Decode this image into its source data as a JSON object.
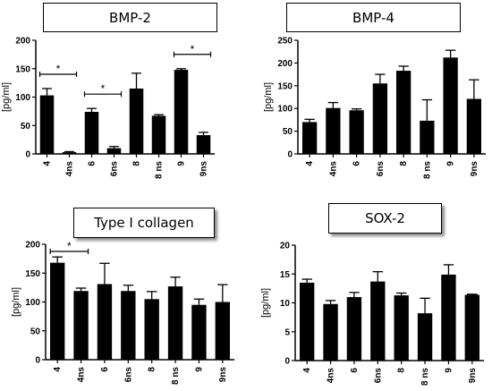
{
  "chart_data": [
    {
      "type": "bar",
      "title": "BMP-2",
      "ylabel": "[pg/ml]",
      "ylim": [
        0,
        200
      ],
      "yticks": [
        0,
        50,
        100,
        150,
        200
      ],
      "categories": [
        "4",
        "4ns",
        "6",
        "6ns",
        "8",
        "8 ns",
        "9",
        "9ns"
      ],
      "values": [
        103,
        3,
        74,
        10,
        115,
        67,
        148,
        33
      ],
      "errors": [
        12,
        1,
        6,
        3,
        27,
        2,
        2,
        5
      ],
      "significance": [
        {
          "from": 0,
          "to": 1,
          "label": "*"
        },
        {
          "from": 2,
          "to": 3,
          "label": "*"
        },
        {
          "from": 6,
          "to": 7,
          "label": "*"
        }
      ]
    },
    {
      "type": "bar",
      "title": "BMP-4",
      "ylabel": "[pg/ml]",
      "ylim": [
        0,
        250
      ],
      "yticks": [
        0,
        50,
        100,
        150,
        200,
        250
      ],
      "categories": [
        "4",
        "4ns",
        "6",
        "6ns",
        "8",
        "8 ns",
        "9",
        "9ns"
      ],
      "values": [
        70,
        101,
        96,
        155,
        183,
        73,
        212,
        121
      ],
      "errors": [
        6,
        12,
        3,
        20,
        10,
        46,
        16,
        42
      ],
      "significance": []
    },
    {
      "type": "bar",
      "title": "Type I collagen",
      "ylabel": "[pg/ml]",
      "ylim": [
        0,
        200
      ],
      "yticks": [
        0,
        50,
        100,
        150,
        200
      ],
      "categories": [
        "4",
        "4ns",
        "6",
        "6ns",
        "8",
        "8 ns",
        "9",
        "9ns"
      ],
      "values": [
        168,
        119,
        131,
        119,
        105,
        127,
        95,
        100
      ],
      "errors": [
        10,
        5,
        36,
        10,
        13,
        16,
        10,
        30
      ],
      "significance": [
        {
          "from": 0,
          "to": 1,
          "label": "*"
        }
      ]
    },
    {
      "type": "bar",
      "title": "SOX-2",
      "ylabel": "[pg/ml]",
      "ylim": [
        0,
        20
      ],
      "yticks": [
        0,
        5,
        10,
        15,
        20
      ],
      "categories": [
        "4",
        "4ns",
        "6",
        "6ns",
        "8",
        "8 ns",
        "9",
        "9ns"
      ],
      "values": [
        13.5,
        9.8,
        11.0,
        13.7,
        11.3,
        8.2,
        14.9,
        11.4
      ],
      "errors": [
        0.6,
        0.6,
        0.8,
        1.7,
        0.4,
        2.6,
        1.7,
        0.1
      ],
      "significance": []
    }
  ]
}
